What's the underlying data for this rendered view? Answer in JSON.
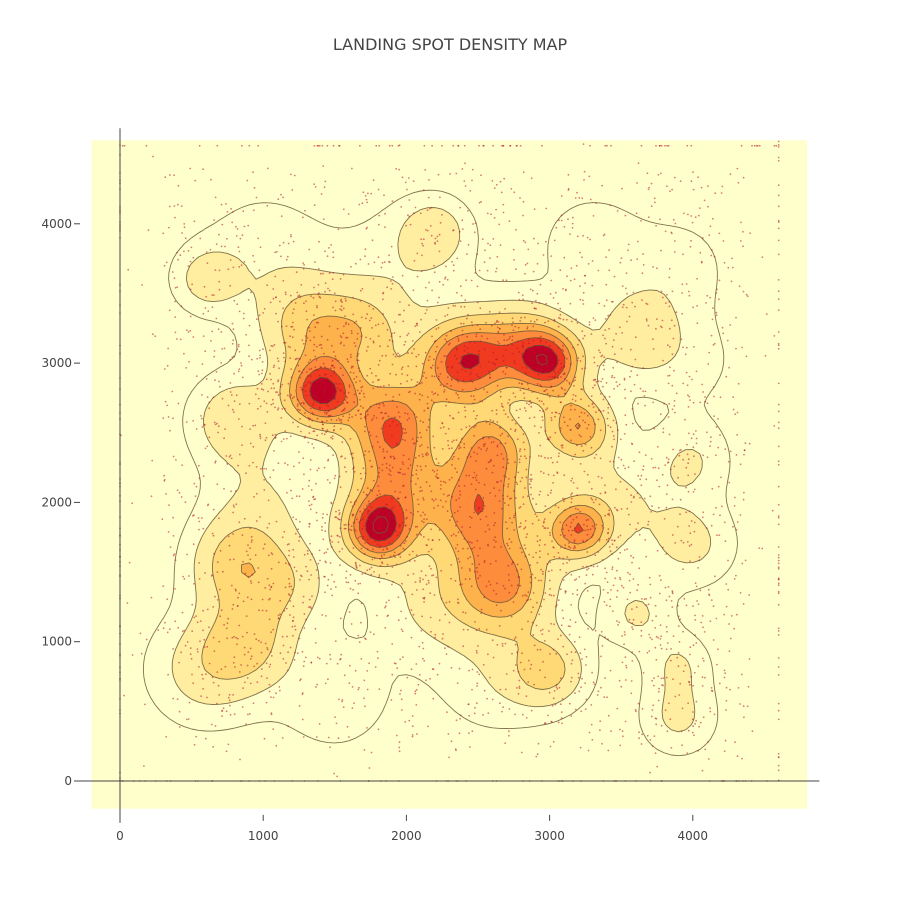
{
  "chart_data": {
    "type": "heatmap",
    "subtype": "density-contour-with-scatter",
    "title": "LANDING SPOT DENSITY MAP",
    "xlabel": "",
    "ylabel": "",
    "xlim": [
      -200,
      4800
    ],
    "ylim": [
      -200,
      4600
    ],
    "x_ticks": [
      0,
      1000,
      2000,
      3000,
      4000
    ],
    "y_ticks": [
      0,
      1000,
      2000,
      3000,
      4000
    ],
    "x_tick_labels": [
      "0",
      "1000",
      "2000",
      "3000",
      "4000"
    ],
    "y_tick_labels": [
      "0",
      "1000",
      "2000",
      "3000",
      "4000"
    ],
    "grid": true,
    "legend": "none",
    "colorscale": [
      "#ffffcc",
      "#ffeda0",
      "#fed976",
      "#feb24c",
      "#fd8d3c",
      "#f03b20",
      "#bd0026"
    ],
    "point_color": "#b2182b",
    "hotspots": [
      {
        "x": 1400,
        "y": 2780,
        "spread": 170,
        "weight": 1.0
      },
      {
        "x": 1800,
        "y": 1800,
        "spread": 170,
        "weight": 1.0
      },
      {
        "x": 2400,
        "y": 3000,
        "spread": 220,
        "weight": 0.95
      },
      {
        "x": 3000,
        "y": 3000,
        "spread": 170,
        "weight": 0.85
      },
      {
        "x": 1900,
        "y": 2580,
        "spread": 230,
        "weight": 0.8
      },
      {
        "x": 2500,
        "y": 1950,
        "spread": 260,
        "weight": 0.8
      },
      {
        "x": 2700,
        "y": 1400,
        "spread": 240,
        "weight": 0.7
      },
      {
        "x": 3200,
        "y": 2550,
        "spread": 170,
        "weight": 0.7
      },
      {
        "x": 3200,
        "y": 1800,
        "spread": 150,
        "weight": 0.7
      },
      {
        "x": 2600,
        "y": 2400,
        "spread": 200,
        "weight": 0.65
      },
      {
        "x": 1900,
        "y": 2150,
        "spread": 230,
        "weight": 0.55
      },
      {
        "x": 2800,
        "y": 3150,
        "spread": 230,
        "weight": 0.5
      },
      {
        "x": 1300,
        "y": 3250,
        "spread": 250,
        "weight": 0.45
      },
      {
        "x": 1700,
        "y": 3200,
        "spread": 230,
        "weight": 0.4
      },
      {
        "x": 800,
        "y": 1550,
        "spread": 240,
        "weight": 0.45
      },
      {
        "x": 3000,
        "y": 800,
        "spread": 200,
        "weight": 0.45
      },
      {
        "x": 800,
        "y": 2600,
        "spread": 230,
        "weight": 0.4
      },
      {
        "x": 3600,
        "y": 3200,
        "spread": 220,
        "weight": 0.35
      },
      {
        "x": 600,
        "y": 800,
        "spread": 300,
        "weight": 0.35
      },
      {
        "x": 900,
        "y": 1000,
        "spread": 220,
        "weight": 0.35
      },
      {
        "x": 2200,
        "y": 3950,
        "spread": 170,
        "weight": 0.3
      },
      {
        "x": 600,
        "y": 3600,
        "spread": 170,
        "weight": 0.3
      },
      {
        "x": 3900,
        "y": 450,
        "spread": 200,
        "weight": 0.3
      },
      {
        "x": 3600,
        "y": 1200,
        "spread": 170,
        "weight": 0.28
      },
      {
        "x": 3900,
        "y": 850,
        "spread": 170,
        "weight": 0.25
      },
      {
        "x": 1200,
        "y": 1400,
        "spread": 230,
        "weight": 0.3
      },
      {
        "x": 3300,
        "y": 3850,
        "spread": 250,
        "weight": 0.25
      },
      {
        "x": 4000,
        "y": 2300,
        "spread": 200,
        "weight": 0.25
      },
      {
        "x": 4000,
        "y": 1700,
        "spread": 230,
        "weight": 0.3
      },
      {
        "x": 1500,
        "y": 600,
        "spread": 300,
        "weight": 0.22
      },
      {
        "x": 2600,
        "y": 700,
        "spread": 300,
        "weight": 0.2
      },
      {
        "x": 3400,
        "y": 2000,
        "spread": 300,
        "weight": 0.3
      },
      {
        "x": 2200,
        "y": 1300,
        "spread": 300,
        "weight": 0.3
      },
      {
        "x": 1000,
        "y": 2000,
        "spread": 300,
        "weight": 0.25
      },
      {
        "x": 1000,
        "y": 3800,
        "spread": 350,
        "weight": 0.2
      },
      {
        "x": 3900,
        "y": 3700,
        "spread": 250,
        "weight": 0.2
      },
      {
        "x": 4000,
        "y": 3000,
        "spread": 300,
        "weight": 0.15
      },
      {
        "x": 2000,
        "y": 3700,
        "spread": 350,
        "weight": 0.2
      }
    ],
    "contour_levels": [
      0.1,
      0.22,
      0.36,
      0.5,
      0.62,
      0.74,
      0.86,
      0.96
    ]
  }
}
